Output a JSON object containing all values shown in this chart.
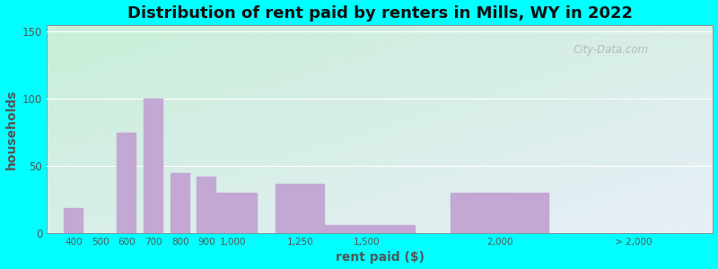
{
  "title": "Distribution of rent paid by renters in Mills, WY in 2022",
  "xlabel": "rent paid ($)",
  "ylabel": "households",
  "bar_color": "#C4A8D4",
  "bar_edgecolor": "#C4A8D4",
  "background_outer": "#00FFFF",
  "gradient_colors": [
    "#C8EED8",
    "#E8EEF8"
  ],
  "yticks": [
    0,
    50,
    100,
    150
  ],
  "ylim": [
    0,
    155
  ],
  "tick_labels": [
    "400",
    "500",
    "600",
    "700",
    "800",
    "900",
    "1,000",
    "1,250",
    "1,500",
    "2,000",
    "> 2,000"
  ],
  "tick_positions": [
    400,
    500,
    600,
    700,
    800,
    900,
    1000,
    1250,
    1500,
    2000,
    2500
  ],
  "bar_centers": [
    400,
    600,
    700,
    800,
    900,
    1000,
    1250,
    1500,
    2000,
    2500
  ],
  "bar_widths": [
    80,
    80,
    80,
    80,
    80,
    200,
    200,
    400,
    400,
    400
  ],
  "values": [
    19,
    75,
    100,
    45,
    42,
    30,
    37,
    6,
    30,
    0
  ],
  "watermark": "City-Data.com",
  "title_fontsize": 13,
  "axis_label_fontsize": 10,
  "xlim": [
    300,
    2800
  ]
}
